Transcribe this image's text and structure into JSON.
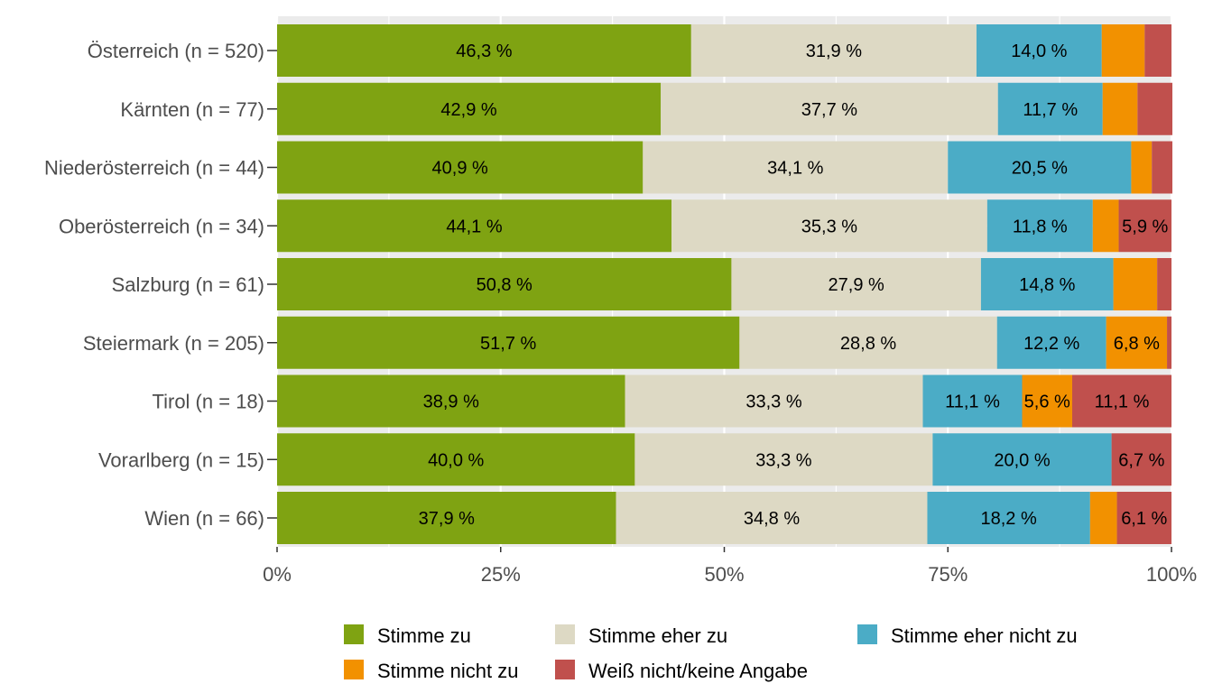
{
  "chart_data": {
    "type": "bar",
    "orientation": "horizontal",
    "stacked": "percent",
    "title": "",
    "xlabel": "",
    "ylabel": "",
    "xlim": [
      0,
      100
    ],
    "x_ticks": [
      "0%",
      "25%",
      "50%",
      "75%",
      "100%"
    ],
    "grid": true,
    "legend_position": "bottom",
    "categories": [
      "Österreich (n = 520)",
      "Kärnten (n = 77)",
      "Niederösterreich (n = 44)",
      "Oberösterreich (n = 34)",
      "Salzburg (n = 61)",
      "Steiermark (n = 205)",
      "Tirol (n = 18)",
      "Vorarlberg (n = 15)",
      "Wien (n = 66)"
    ],
    "series": [
      {
        "name": "Stimme zu",
        "color": "#7fa312",
        "values": [
          46.3,
          42.9,
          40.9,
          44.1,
          50.8,
          51.7,
          38.9,
          40.0,
          37.9
        ],
        "labels": [
          "46,3 %",
          "42,9 %",
          "40,9 %",
          "44,1 %",
          "50,8 %",
          "51,7 %",
          "38,9 %",
          "40,0 %",
          "37,9 %"
        ]
      },
      {
        "name": "Stimme eher zu",
        "color": "#ddd9c4",
        "values": [
          31.9,
          37.7,
          34.1,
          35.3,
          27.9,
          28.8,
          33.3,
          33.3,
          34.8
        ],
        "labels": [
          "31,9 %",
          "37,7 %",
          "34,1 %",
          "35,3 %",
          "27,9 %",
          "28,8 %",
          "33,3 %",
          "33,3 %",
          "34,8 %"
        ]
      },
      {
        "name": "Stimme eher nicht zu",
        "color": "#4bacc6",
        "values": [
          14.0,
          11.7,
          20.5,
          11.8,
          14.8,
          12.2,
          11.1,
          20.0,
          18.2
        ],
        "labels": [
          "14,0 %",
          "11,7 %",
          "20,5 %",
          "11,8 %",
          "14,8 %",
          "12,2 %",
          "11,1 %",
          "20,0 %",
          "18,2 %"
        ]
      },
      {
        "name": "Stimme nicht zu",
        "color": "#f29100",
        "values": [
          4.8,
          3.9,
          2.3,
          2.9,
          4.9,
          6.8,
          5.6,
          0.0,
          3.0
        ],
        "labels": [
          "",
          "",
          "",
          "",
          "",
          "6,8 %",
          "5,6 %",
          "",
          ""
        ]
      },
      {
        "name": "Weiß nicht/keine Angabe",
        "color": "#c0504d",
        "values": [
          3.0,
          3.9,
          2.3,
          5.9,
          1.6,
          0.5,
          11.1,
          6.7,
          6.1
        ],
        "labels": [
          "",
          "",
          "",
          "5,9 %",
          "",
          "",
          "11,1 %",
          "6,7 %",
          "6,1 %"
        ]
      }
    ]
  },
  "legend": {
    "items": [
      {
        "label": "Stimme zu",
        "color": "#7fa312"
      },
      {
        "label": "Stimme eher zu",
        "color": "#ddd9c4"
      },
      {
        "label": "Stimme eher nicht zu",
        "color": "#4bacc6"
      },
      {
        "label": "Stimme nicht zu",
        "color": "#f29100"
      },
      {
        "label": "Weiß nicht/keine Angabe",
        "color": "#c0504d"
      }
    ]
  }
}
